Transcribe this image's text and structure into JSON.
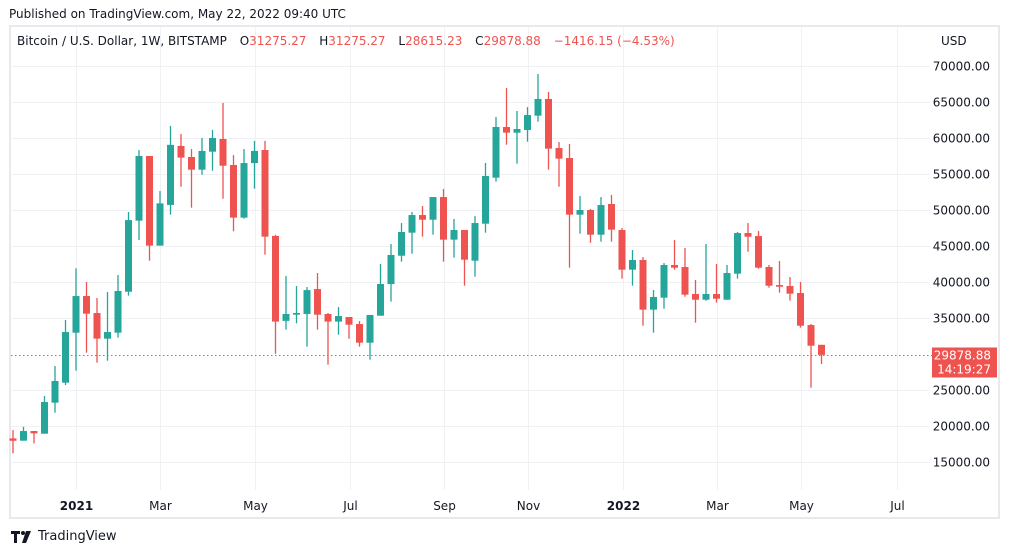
{
  "published": "Published on TradingView.com, May 22, 2022 09:40 UTC",
  "legend": {
    "symbol": "Bitcoin / U.S. Dollar, 1W, BITSTAMP",
    "o_label": "O",
    "o_value": "31275.27",
    "h_label": "H",
    "h_value": "31275.27",
    "l_label": "L",
    "l_value": "28615.23",
    "c_label": "C",
    "c_value": "29878.88",
    "change": "−1416.15 (−4.53%)"
  },
  "footer": {
    "brand": "TradingView",
    "logo_icon": "tradingview-logo-icon"
  },
  "colors": {
    "up": "#26a69a",
    "down": "#ef5350",
    "grid": "#f0f1f4",
    "text": "#131722"
  },
  "chart_data": {
    "type": "candlestick",
    "title": "Bitcoin / U.S. Dollar, 1W, BITSTAMP",
    "currency_label": "USD",
    "ylim": [
      9500,
      74500
    ],
    "grid": true,
    "y_ticks": [
      {
        "value": 70000,
        "label": "70000.00"
      },
      {
        "value": 65000,
        "label": "65000.00"
      },
      {
        "value": 60000,
        "label": "60000.00"
      },
      {
        "value": 55000,
        "label": "55000.00"
      },
      {
        "value": 50000,
        "label": "50000.00"
      },
      {
        "value": 45000,
        "label": "45000.00"
      },
      {
        "value": 40000,
        "label": "40000.00"
      },
      {
        "value": 35000,
        "label": "35000.00"
      },
      {
        "value": 25000,
        "label": "25000.00"
      },
      {
        "value": 20000,
        "label": "20000.00"
      },
      {
        "value": 15000,
        "label": "15000.00"
      }
    ],
    "x_ticks": [
      {
        "week": 6.0,
        "label": "2021",
        "bold": true
      },
      {
        "week": 14.0,
        "label": "Mar"
      },
      {
        "week": 23.05,
        "label": "May"
      },
      {
        "week": 32.1,
        "label": "Jul"
      },
      {
        "week": 41.05,
        "label": "Sep"
      },
      {
        "week": 49.05,
        "label": "Nov"
      },
      {
        "week": 58.1,
        "label": "2022",
        "bold": true
      },
      {
        "week": 67.05,
        "label": "Mar"
      },
      {
        "week": 75.05,
        "label": "May"
      },
      {
        "week": 84.2,
        "label": "Jul"
      }
    ],
    "last_price": {
      "value": 29878.88,
      "label": "29878.88",
      "countdown": "14:19:27"
    },
    "ohlc_columns": [
      "open",
      "high",
      "low",
      "close"
    ],
    "candles": [
      [
        18280,
        19440,
        16200,
        17950
      ],
      [
        17960,
        19900,
        17960,
        19300
      ],
      [
        19300,
        19300,
        17580,
        18980
      ],
      [
        18930,
        24160,
        18930,
        23330
      ],
      [
        23240,
        28330,
        21850,
        26250
      ],
      [
        26020,
        34720,
        25690,
        33050
      ],
      [
        32960,
        41900,
        27680,
        38050
      ],
      [
        38050,
        40000,
        30180,
        35600
      ],
      [
        35690,
        37770,
        28800,
        32130
      ],
      [
        32130,
        38610,
        29070,
        33050
      ],
      [
        32960,
        40970,
        32270,
        38750
      ],
      [
        38650,
        49720,
        38100,
        48600
      ],
      [
        48520,
        58330,
        45830,
        57500
      ],
      [
        57500,
        57500,
        42960,
        45050
      ],
      [
        45050,
        52640,
        45050,
        50920
      ],
      [
        50700,
        61680,
        49350,
        59050
      ],
      [
        58900,
        60560,
        53240,
        57280
      ],
      [
        57360,
        58470,
        50320,
        55600
      ],
      [
        55600,
        60000,
        54900,
        58200
      ],
      [
        58100,
        61130,
        55460,
        60000
      ],
      [
        59860,
        64870,
        51570,
        56150
      ],
      [
        56250,
        57630,
        47040,
        48940
      ],
      [
        48940,
        58470,
        48800,
        56520
      ],
      [
        56520,
        59600,
        52960,
        58200
      ],
      [
        58330,
        59600,
        43800,
        46300
      ],
      [
        46400,
        46540,
        30030,
        34500
      ],
      [
        34600,
        40830,
        33380,
        35560
      ],
      [
        35460,
        39440,
        34260,
        35690
      ],
      [
        35560,
        39300,
        31020,
        38880
      ],
      [
        39020,
        41250,
        33380,
        35460
      ],
      [
        35560,
        35690,
        28520,
        34500
      ],
      [
        34500,
        36520,
        32680,
        35270
      ],
      [
        35140,
        35140,
        32130,
        34070
      ],
      [
        34160,
        34580,
        31020,
        31570
      ],
      [
        31570,
        35420,
        29210,
        35420
      ],
      [
        35320,
        42500,
        35320,
        39720
      ],
      [
        39720,
        45280,
        37270,
        43750
      ],
      [
        43650,
        48190,
        42820,
        46940
      ],
      [
        46850,
        49720,
        43930,
        49300
      ],
      [
        49300,
        50550,
        46300,
        48650
      ],
      [
        48650,
        51800,
        46570,
        51800
      ],
      [
        51800,
        52920,
        42820,
        45880
      ],
      [
        45880,
        48750,
        43380,
        47220
      ],
      [
        47220,
        47220,
        39490,
        43100
      ],
      [
        42960,
        49160,
        40740,
        48190
      ],
      [
        48100,
        56530,
        46850,
        54720
      ],
      [
        54490,
        62920,
        53930,
        61530
      ],
      [
        61530,
        66940,
        59070,
        60740
      ],
      [
        60740,
        63750,
        56430,
        61250
      ],
      [
        61110,
        64300,
        59490,
        63190
      ],
      [
        63100,
        68890,
        62270,
        65420
      ],
      [
        65420,
        66390,
        55600,
        58520
      ],
      [
        58610,
        59440,
        53240,
        57130
      ],
      [
        57220,
        59170,
        42000,
        49350
      ],
      [
        49350,
        51940,
        46710,
        50000
      ],
      [
        50000,
        50140,
        45460,
        46570
      ],
      [
        46570,
        51800,
        45600,
        50690
      ],
      [
        50830,
        52080,
        45600,
        47270
      ],
      [
        47220,
        47500,
        40460,
        41710
      ],
      [
        41710,
        44440,
        39490,
        43050
      ],
      [
        43050,
        43470,
        33930,
        36160
      ],
      [
        36160,
        38890,
        32960,
        37920
      ],
      [
        37820,
        42640,
        36290,
        42360
      ],
      [
        42360,
        45830,
        41710,
        41990
      ],
      [
        42080,
        44720,
        37960,
        38240
      ],
      [
        38330,
        40280,
        34350,
        37540
      ],
      [
        37540,
        45280,
        37400,
        38330
      ],
      [
        38330,
        42500,
        37130,
        37680
      ],
      [
        37540,
        42360,
        37540,
        41250
      ],
      [
        41160,
        46940,
        40460,
        46800
      ],
      [
        46800,
        48190,
        44210,
        46290
      ],
      [
        46380,
        47080,
        41850,
        41990
      ],
      [
        42080,
        42360,
        39210,
        39490
      ],
      [
        39580,
        42920,
        38520,
        39350
      ],
      [
        39440,
        40690,
        37400,
        38380
      ],
      [
        38470,
        40000,
        33660,
        33930
      ],
      [
        34020,
        34160,
        25320,
        31150
      ],
      [
        31275.27,
        31275.27,
        28615.23,
        29878.88
      ]
    ]
  }
}
